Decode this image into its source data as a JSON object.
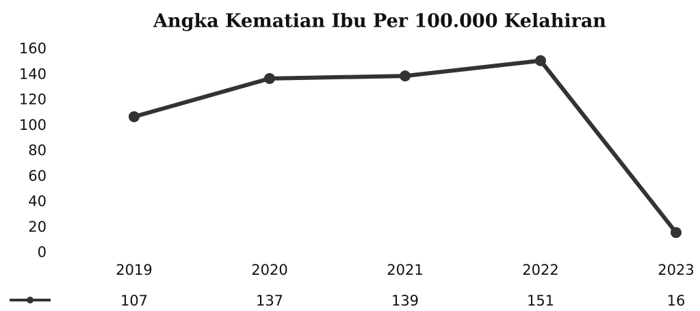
{
  "chart_data": {
    "type": "line",
    "title": "Angka Kematian Ibu Per 100.000 Kelahiran",
    "categories": [
      "2019",
      "2020",
      "2021",
      "2022",
      "2023"
    ],
    "series": [
      {
        "color": "#333333",
        "values": [
          107,
          137,
          139,
          151,
          16
        ]
      }
    ],
    "ylim": [
      0,
      160
    ],
    "yticks": [
      0,
      20,
      40,
      60,
      80,
      100,
      120,
      140,
      160
    ],
    "grid": false
  }
}
